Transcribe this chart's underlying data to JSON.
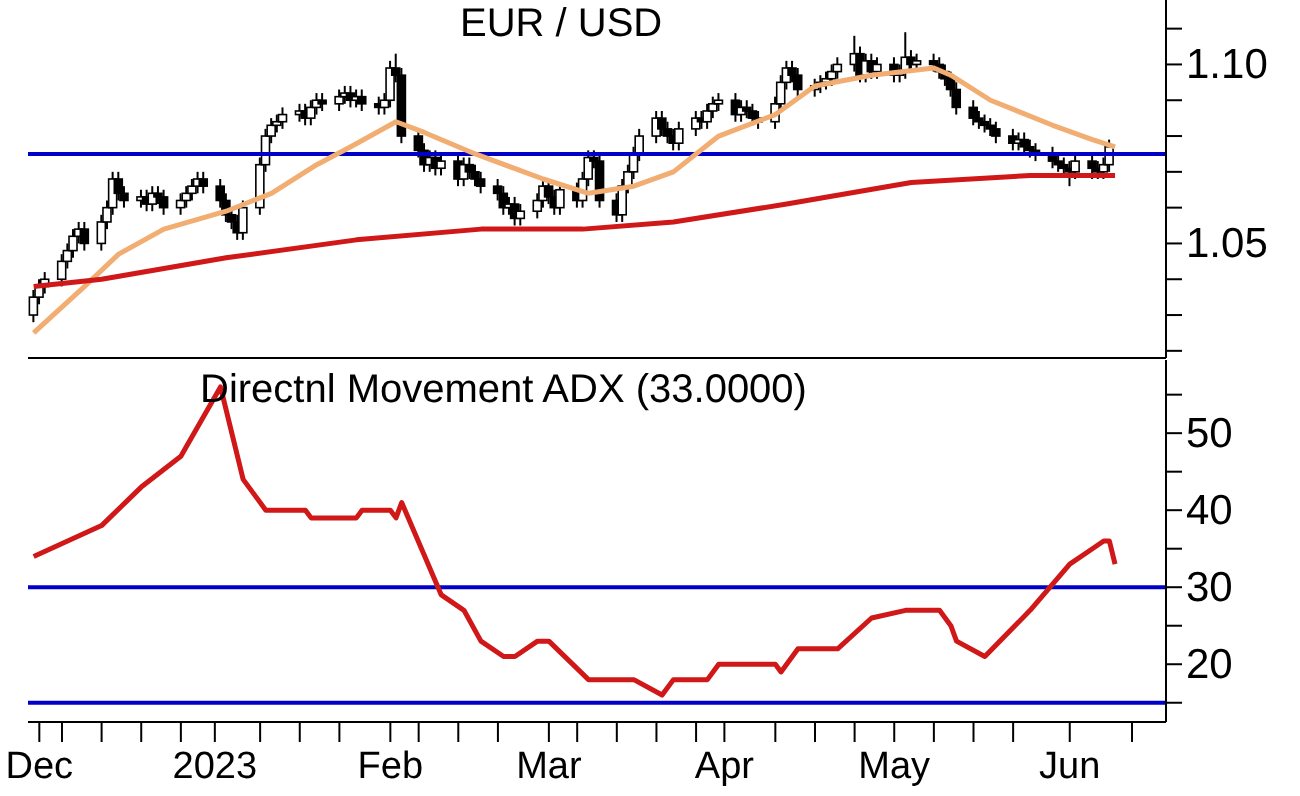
{
  "chart_data": [
    {
      "type": "candlestick",
      "title": "EUR / USD",
      "tick_labels": "y",
      "x": [
        "2022-11-30",
        "2022-12-01",
        "2022-12-02",
        "2022-12-05",
        "2022-12-06",
        "2022-12-07",
        "2022-12-08",
        "2022-12-09",
        "2022-12-12",
        "2022-12-13",
        "2022-12-14",
        "2022-12-15",
        "2022-12-16",
        "2022-12-19",
        "2022-12-20",
        "2022-12-21",
        "2022-12-22",
        "2022-12-23",
        "2022-12-26",
        "2022-12-27",
        "2022-12-28",
        "2022-12-29",
        "2022-12-30",
        "2023-01-02",
        "2023-01-03",
        "2023-01-04",
        "2023-01-05",
        "2023-01-06",
        "2023-01-09",
        "2023-01-10",
        "2023-01-11",
        "2023-01-12",
        "2023-01-13",
        "2023-01-16",
        "2023-01-17",
        "2023-01-18",
        "2023-01-19",
        "2023-01-20",
        "2023-01-23",
        "2023-01-24",
        "2023-01-25",
        "2023-01-26",
        "2023-01-27",
        "2023-01-30",
        "2023-01-31",
        "2023-02-01",
        "2023-02-02",
        "2023-02-03",
        "2023-02-06",
        "2023-02-07",
        "2023-02-08",
        "2023-02-09",
        "2023-02-10",
        "2023-02-13",
        "2023-02-14",
        "2023-02-15",
        "2023-02-16",
        "2023-02-17",
        "2023-02-20",
        "2023-02-21",
        "2023-02-22",
        "2023-02-23",
        "2023-02-24",
        "2023-02-27",
        "2023-02-28",
        "2023-03-01",
        "2023-03-02",
        "2023-03-03",
        "2023-03-06",
        "2023-03-07",
        "2023-03-08",
        "2023-03-09",
        "2023-03-10",
        "2023-03-13",
        "2023-03-14",
        "2023-03-15",
        "2023-03-16",
        "2023-03-17",
        "2023-03-20",
        "2023-03-21",
        "2023-03-22",
        "2023-03-23",
        "2023-03-24",
        "2023-03-27",
        "2023-03-28",
        "2023-03-29",
        "2023-03-30",
        "2023-03-31",
        "2023-04-03",
        "2023-04-04",
        "2023-04-05",
        "2023-04-06",
        "2023-04-07",
        "2023-04-10",
        "2023-04-11",
        "2023-04-12",
        "2023-04-13",
        "2023-04-14",
        "2023-04-17",
        "2023-04-18",
        "2023-04-19",
        "2023-04-20",
        "2023-04-21",
        "2023-04-24",
        "2023-04-25",
        "2023-04-26",
        "2023-04-27",
        "2023-04-28",
        "2023-05-01",
        "2023-05-02",
        "2023-05-03",
        "2023-05-04",
        "2023-05-05",
        "2023-05-08",
        "2023-05-09",
        "2023-05-10",
        "2023-05-11",
        "2023-05-12",
        "2023-05-15",
        "2023-05-16",
        "2023-05-17",
        "2023-05-18",
        "2023-05-19",
        "2023-05-22",
        "2023-05-23",
        "2023-05-24",
        "2023-05-25",
        "2023-05-26",
        "2023-05-29",
        "2023-05-30",
        "2023-05-31",
        "2023-06-01",
        "2023-06-02",
        "2023-06-05",
        "2023-06-06",
        "2023-06-07",
        "2023-06-08"
      ],
      "ohlc": [
        [
          1.03,
          1.037,
          1.028,
          1.035
        ],
        [
          1.035,
          1.04,
          1.033,
          1.038
        ],
        [
          1.038,
          1.042,
          1.036,
          1.04
        ],
        [
          1.04,
          1.047,
          1.038,
          1.045
        ],
        [
          1.045,
          1.05,
          1.043,
          1.048
        ],
        [
          1.048,
          1.054,
          1.046,
          1.052
        ],
        [
          1.052,
          1.056,
          1.05,
          1.054
        ],
        [
          1.054,
          1.056,
          1.048,
          1.05
        ],
        [
          1.05,
          1.058,
          1.048,
          1.056
        ],
        [
          1.056,
          1.062,
          1.054,
          1.06
        ],
        [
          1.06,
          1.07,
          1.058,
          1.068
        ],
        [
          1.068,
          1.07,
          1.062,
          1.064
        ],
        [
          1.064,
          1.066,
          1.06,
          1.062
        ],
        [
          1.062,
          1.065,
          1.06,
          1.063
        ],
        [
          1.063,
          1.065,
          1.059,
          1.061
        ],
        [
          1.061,
          1.066,
          1.059,
          1.064
        ],
        [
          1.064,
          1.066,
          1.061,
          1.063
        ],
        [
          1.063,
          1.065,
          1.058,
          1.06
        ],
        [
          1.06,
          1.064,
          1.058,
          1.062
        ],
        [
          1.062,
          1.066,
          1.06,
          1.064
        ],
        [
          1.064,
          1.068,
          1.062,
          1.066
        ],
        [
          1.066,
          1.07,
          1.064,
          1.068
        ],
        [
          1.068,
          1.07,
          1.064,
          1.066
        ],
        [
          1.066,
          1.068,
          1.06,
          1.062
        ],
        [
          1.062,
          1.064,
          1.056,
          1.058
        ],
        [
          1.058,
          1.06,
          1.054,
          1.056
        ],
        [
          1.056,
          1.058,
          1.051,
          1.053
        ],
        [
          1.053,
          1.062,
          1.051,
          1.06
        ],
        [
          1.06,
          1.074,
          1.058,
          1.072
        ],
        [
          1.072,
          1.082,
          1.07,
          1.08
        ],
        [
          1.08,
          1.085,
          1.078,
          1.083
        ],
        [
          1.083,
          1.086,
          1.081,
          1.084
        ],
        [
          1.084,
          1.088,
          1.082,
          1.086
        ],
        [
          1.086,
          1.089,
          1.084,
          1.087
        ],
        [
          1.087,
          1.089,
          1.083,
          1.085
        ],
        [
          1.085,
          1.09,
          1.083,
          1.088
        ],
        [
          1.088,
          1.092,
          1.086,
          1.09
        ],
        [
          1.09,
          1.092,
          1.087,
          1.089
        ],
        [
          1.089,
          1.093,
          1.087,
          1.091
        ],
        [
          1.091,
          1.094,
          1.089,
          1.092
        ],
        [
          1.092,
          1.094,
          1.088,
          1.09
        ],
        [
          1.09,
          1.093,
          1.088,
          1.091
        ],
        [
          1.091,
          1.093,
          1.087,
          1.089
        ],
        [
          1.089,
          1.091,
          1.086,
          1.088
        ],
        [
          1.088,
          1.092,
          1.086,
          1.09
        ],
        [
          1.09,
          1.101,
          1.088,
          1.099
        ],
        [
          1.099,
          1.103,
          1.095,
          1.097
        ],
        [
          1.097,
          1.099,
          1.078,
          1.08
        ],
        [
          1.08,
          1.082,
          1.074,
          1.076
        ],
        [
          1.076,
          1.078,
          1.07,
          1.072
        ],
        [
          1.072,
          1.076,
          1.07,
          1.074
        ],
        [
          1.074,
          1.076,
          1.069,
          1.071
        ],
        [
          1.071,
          1.075,
          1.069,
          1.073
        ],
        [
          1.073,
          1.075,
          1.066,
          1.068
        ],
        [
          1.068,
          1.074,
          1.066,
          1.072
        ],
        [
          1.072,
          1.074,
          1.068,
          1.07
        ],
        [
          1.07,
          1.072,
          1.066,
          1.068
        ],
        [
          1.068,
          1.07,
          1.064,
          1.066
        ],
        [
          1.066,
          1.068,
          1.062,
          1.064
        ],
        [
          1.064,
          1.066,
          1.058,
          1.06
        ],
        [
          1.06,
          1.063,
          1.058,
          1.061
        ],
        [
          1.061,
          1.063,
          1.055,
          1.057
        ],
        [
          1.057,
          1.061,
          1.055,
          1.059
        ],
        [
          1.059,
          1.064,
          1.057,
          1.062
        ],
        [
          1.062,
          1.068,
          1.06,
          1.066
        ],
        [
          1.066,
          1.068,
          1.061,
          1.063
        ],
        [
          1.063,
          1.065,
          1.058,
          1.06
        ],
        [
          1.06,
          1.067,
          1.058,
          1.065
        ],
        [
          1.065,
          1.067,
          1.06,
          1.062
        ],
        [
          1.062,
          1.07,
          1.06,
          1.068
        ],
        [
          1.068,
          1.076,
          1.066,
          1.074
        ],
        [
          1.074,
          1.076,
          1.071,
          1.073
        ],
        [
          1.073,
          1.075,
          1.06,
          1.062
        ],
        [
          1.062,
          1.064,
          1.056,
          1.058
        ],
        [
          1.058,
          1.068,
          1.056,
          1.066
        ],
        [
          1.066,
          1.072,
          1.064,
          1.07
        ],
        [
          1.07,
          1.077,
          1.068,
          1.075
        ],
        [
          1.075,
          1.082,
          1.073,
          1.08
        ],
        [
          1.08,
          1.087,
          1.078,
          1.085
        ],
        [
          1.085,
          1.087,
          1.08,
          1.082
        ],
        [
          1.082,
          1.084,
          1.078,
          1.08
        ],
        [
          1.08,
          1.082,
          1.076,
          1.078
        ],
        [
          1.078,
          1.084,
          1.076,
          1.082
        ],
        [
          1.082,
          1.087,
          1.08,
          1.085
        ],
        [
          1.085,
          1.087,
          1.082,
          1.084
        ],
        [
          1.084,
          1.089,
          1.082,
          1.087
        ],
        [
          1.087,
          1.091,
          1.085,
          1.089
        ],
        [
          1.089,
          1.092,
          1.087,
          1.09
        ],
        [
          1.09,
          1.092,
          1.084,
          1.086
        ],
        [
          1.086,
          1.09,
          1.084,
          1.088
        ],
        [
          1.088,
          1.09,
          1.085,
          1.087
        ],
        [
          1.087,
          1.089,
          1.083,
          1.085
        ],
        [
          1.085,
          1.087,
          1.082,
          1.084
        ],
        [
          1.084,
          1.091,
          1.082,
          1.089
        ],
        [
          1.089,
          1.097,
          1.087,
          1.095
        ],
        [
          1.095,
          1.101,
          1.093,
          1.099
        ],
        [
          1.099,
          1.101,
          1.095,
          1.097
        ],
        [
          1.097,
          1.099,
          1.091,
          1.093
        ],
        [
          1.093,
          1.096,
          1.091,
          1.094
        ],
        [
          1.094,
          1.097,
          1.092,
          1.095
        ],
        [
          1.095,
          1.098,
          1.093,
          1.096
        ],
        [
          1.096,
          1.1,
          1.094,
          1.098
        ],
        [
          1.098,
          1.102,
          1.096,
          1.1
        ],
        [
          1.1,
          1.108,
          1.098,
          1.103
        ],
        [
          1.103,
          1.105,
          1.095,
          1.097
        ],
        [
          1.097,
          1.103,
          1.095,
          1.101
        ],
        [
          1.101,
          1.103,
          1.096,
          1.098
        ],
        [
          1.098,
          1.102,
          1.096,
          1.1
        ],
        [
          1.1,
          1.102,
          1.095,
          1.097
        ],
        [
          1.097,
          1.1,
          1.095,
          1.098
        ],
        [
          1.098,
          1.109,
          1.096,
          1.102
        ],
        [
          1.102,
          1.104,
          1.098,
          1.1
        ],
        [
          1.1,
          1.103,
          1.098,
          1.101
        ],
        [
          1.101,
          1.103,
          1.098,
          1.1
        ],
        [
          1.1,
          1.102,
          1.096,
          1.098
        ],
        [
          1.098,
          1.1,
          1.094,
          1.096
        ],
        [
          1.096,
          1.098,
          1.091,
          1.093
        ],
        [
          1.093,
          1.095,
          1.086,
          1.088
        ],
        [
          1.088,
          1.09,
          1.083,
          1.085
        ],
        [
          1.085,
          1.087,
          1.082,
          1.084
        ],
        [
          1.084,
          1.086,
          1.081,
          1.083
        ],
        [
          1.083,
          1.085,
          1.08,
          1.082
        ],
        [
          1.082,
          1.084,
          1.078,
          1.08
        ],
        [
          1.08,
          1.082,
          1.076,
          1.078
        ],
        [
          1.078,
          1.081,
          1.076,
          1.079
        ],
        [
          1.079,
          1.081,
          1.075,
          1.077
        ],
        [
          1.077,
          1.079,
          1.074,
          1.076
        ],
        [
          1.076,
          1.078,
          1.073,
          1.075
        ],
        [
          1.075,
          1.077,
          1.071,
          1.073
        ],
        [
          1.073,
          1.075,
          1.07,
          1.072
        ],
        [
          1.072,
          1.074,
          1.069,
          1.071
        ],
        [
          1.071,
          1.073,
          1.066,
          1.07
        ],
        [
          1.07,
          1.075,
          1.068,
          1.073
        ],
        [
          1.073,
          1.075,
          1.068,
          1.071
        ],
        [
          1.071,
          1.073,
          1.068,
          1.07
        ],
        [
          1.07,
          1.074,
          1.068,
          1.072
        ],
        [
          1.072,
          1.079,
          1.07,
          1.077
        ]
      ],
      "series": [
        {
          "type": "line",
          "color": "#f2ad72",
          "x": [
            "2022-11-30",
            "2022-12-09",
            "2022-12-15",
            "2022-12-23",
            "2023-01-03",
            "2023-01-11",
            "2023-01-19",
            "2023-01-25",
            "2023-02-02",
            "2023-02-07",
            "2023-02-16",
            "2023-02-28",
            "2023-03-08",
            "2023-03-16",
            "2023-03-23",
            "2023-03-31",
            "2023-04-10",
            "2023-04-17",
            "2023-04-27",
            "2023-05-08",
            "2023-05-11",
            "2023-05-18",
            "2023-05-29",
            "2023-06-05",
            "2023-06-09"
          ],
          "values": [
            1.025,
            1.038,
            1.047,
            1.054,
            1.059,
            1.064,
            1.072,
            1.077,
            1.084,
            1.081,
            1.075,
            1.068,
            1.064,
            1.066,
            1.07,
            1.08,
            1.086,
            1.094,
            1.097,
            1.099,
            1.097,
            1.09,
            1.083,
            1.079,
            1.077
          ]
        },
        {
          "type": "line",
          "color": "#d01818",
          "x": [
            "2022-11-30",
            "2022-12-12",
            "2023-01-03",
            "2023-01-26",
            "2023-02-17",
            "2023-03-07",
            "2023-03-23",
            "2023-04-12",
            "2023-05-04",
            "2023-05-25",
            "2023-06-09"
          ],
          "values": [
            1.038,
            1.04,
            1.046,
            1.051,
            1.054,
            1.054,
            1.056,
            1.061,
            1.067,
            1.069,
            1.069
          ]
        }
      ],
      "xlim": [
        "2022-11-29",
        "2023-06-18"
      ],
      "ylim": [
        1.018,
        1.118
      ],
      "yticks": [
        {
          "value": 1.02,
          "label": null
        },
        {
          "value": 1.03,
          "label": null
        },
        {
          "value": 1.04,
          "label": null
        },
        {
          "value": 1.05,
          "label": "1.05"
        },
        {
          "value": 1.06,
          "label": null
        },
        {
          "value": 1.07,
          "label": null
        },
        {
          "value": 1.08,
          "label": null
        },
        {
          "value": 1.09,
          "label": null
        },
        {
          "value": 1.1,
          "label": "1.10"
        },
        {
          "value": 1.11,
          "label": null
        }
      ],
      "ref_lines": [
        {
          "axis": "y",
          "value": 1.075,
          "color": "#0000c8"
        }
      ]
    },
    {
      "type": "line",
      "title": "Directnl Movement ADX (33.0000)",
      "x": [
        "2022-11-30",
        "2022-12-12",
        "2022-12-19",
        "2022-12-26",
        "2023-01-02",
        "2023-01-06",
        "2023-01-10",
        "2023-01-17",
        "2023-01-18",
        "2023-01-26",
        "2023-01-27",
        "2023-02-01",
        "2023-02-02",
        "2023-02-03",
        "2023-02-10",
        "2023-02-14",
        "2023-02-17",
        "2023-02-21",
        "2023-02-23",
        "2023-02-27",
        "2023-03-01",
        "2023-03-08",
        "2023-03-16",
        "2023-03-21",
        "2023-03-23",
        "2023-03-29",
        "2023-03-31",
        "2023-04-10",
        "2023-04-11",
        "2023-04-14",
        "2023-04-21",
        "2023-04-27",
        "2023-05-03",
        "2023-05-09",
        "2023-05-11",
        "2023-05-12",
        "2023-05-17",
        "2023-05-25",
        "2023-06-01",
        "2023-06-05",
        "2023-06-07",
        "2023-06-08",
        "2023-06-09"
      ],
      "series": [
        {
          "color": "#d01818",
          "values": [
            34,
            38,
            43,
            47,
            56,
            44,
            40,
            40,
            39,
            39,
            40,
            40,
            39,
            41,
            29,
            27,
            23,
            21,
            21,
            23,
            23,
            18,
            18,
            16,
            18,
            18,
            20,
            20,
            19,
            22,
            22,
            26,
            27,
            27,
            25,
            23,
            21,
            27,
            33,
            35,
            36,
            36,
            33
          ]
        }
      ],
      "xlim": [
        "2022-11-29",
        "2023-06-18"
      ],
      "ylim": [
        12.5,
        59.5
      ],
      "xticks": [
        {
          "value": "2022-12-01",
          "label": "Dec"
        },
        {
          "value": "2022-12-05",
          "label": null
        },
        {
          "value": "2022-12-12",
          "label": null
        },
        {
          "value": "2022-12-19",
          "label": null
        },
        {
          "value": "2022-12-26",
          "label": null
        },
        {
          "value": "2023-01-01",
          "label": "2023"
        },
        {
          "value": "2023-01-09",
          "label": null
        },
        {
          "value": "2023-01-16",
          "label": null
        },
        {
          "value": "2023-01-23",
          "label": null
        },
        {
          "value": "2023-02-01",
          "label": "Feb"
        },
        {
          "value": "2023-02-06",
          "label": null
        },
        {
          "value": "2023-02-13",
          "label": null
        },
        {
          "value": "2023-02-20",
          "label": null
        },
        {
          "value": "2023-03-01",
          "label": "Mar"
        },
        {
          "value": "2023-03-06",
          "label": null
        },
        {
          "value": "2023-03-13",
          "label": null
        },
        {
          "value": "2023-03-20",
          "label": null
        },
        {
          "value": "2023-03-27",
          "label": null
        },
        {
          "value": "2023-04-01",
          "label": "Apr"
        },
        {
          "value": "2023-04-10",
          "label": null
        },
        {
          "value": "2023-04-17",
          "label": null
        },
        {
          "value": "2023-04-24",
          "label": null
        },
        {
          "value": "2023-05-01",
          "label": "May"
        },
        {
          "value": "2023-05-08",
          "label": null
        },
        {
          "value": "2023-05-15",
          "label": null
        },
        {
          "value": "2023-05-22",
          "label": null
        },
        {
          "value": "2023-06-01",
          "label": "Jun"
        },
        {
          "value": "2023-06-12",
          "label": null
        }
      ],
      "yticks": [
        {
          "value": 15,
          "label": null
        },
        20,
        {
          "value": 25,
          "label": null
        },
        30,
        {
          "value": 35,
          "label": null
        },
        40,
        {
          "value": 45,
          "label": null
        },
        50,
        {
          "value": 55,
          "label": null
        }
      ],
      "ref_lines": [
        {
          "axis": "y",
          "value": 30,
          "color": "#0000c8"
        },
        {
          "axis": "y",
          "value": 15,
          "color": "#0000c8"
        }
      ]
    }
  ]
}
